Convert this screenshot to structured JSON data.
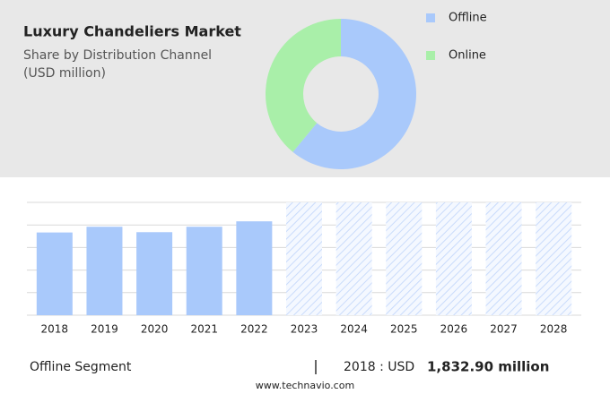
{
  "chart_data": [
    {
      "type": "pie",
      "title": "Luxury Chandeliers Market",
      "subtitle": "Share by Distribution Channel",
      "unit": "(USD million)",
      "categories": [
        "Offline",
        "Online"
      ],
      "values": [
        61,
        39
      ],
      "colors": [
        "#a9c9fb",
        "#a9efa9"
      ],
      "donut": true,
      "legend": "top-right"
    },
    {
      "type": "bar",
      "categories": [
        "2018",
        "2019",
        "2020",
        "2021",
        "2022",
        "2023",
        "2024",
        "2025",
        "2026",
        "2027",
        "2028"
      ],
      "values": [
        1832.9,
        1960,
        1840,
        1960,
        2080,
        null,
        null,
        null,
        null,
        null,
        null
      ],
      "color": "#a9c9fb",
      "ylim": [
        0,
        2500
      ],
      "grid": true
    }
  ],
  "footer": {
    "segment": "Offline Segment",
    "prefix": "2018 : USD",
    "value": "1,832.90 million",
    "source": "www.technavio.com"
  }
}
